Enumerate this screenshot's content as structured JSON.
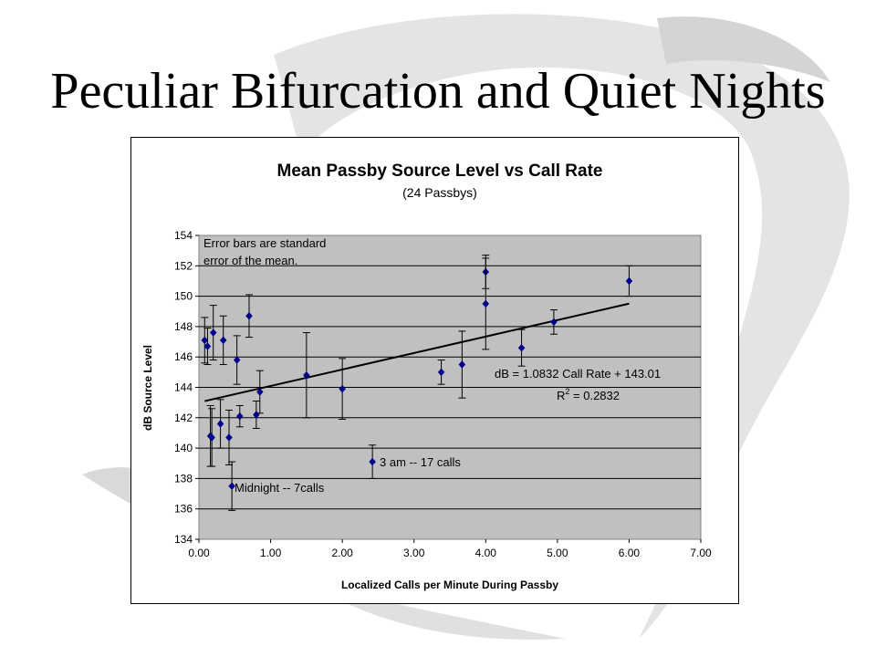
{
  "slide": {
    "title": "Peculiar Bifurcation and Quiet Nights"
  },
  "chart_data": {
    "type": "scatter",
    "title": "Mean Passby Source Level vs Call Rate",
    "subtitle": "(24 Passbys)",
    "xlabel": "Localized Calls per Minute During Passby",
    "ylabel": "dB Source Level",
    "xlim": [
      0,
      7
    ],
    "ylim": [
      134,
      154
    ],
    "x_ticks": [
      "0.00",
      "1.00",
      "2.00",
      "3.00",
      "4.00",
      "5.00",
      "6.00",
      "7.00"
    ],
    "y_ticks": [
      "134",
      "136",
      "138",
      "140",
      "142",
      "144",
      "146",
      "148",
      "150",
      "152",
      "154"
    ],
    "grid": "horizontal",
    "plot_background": "#c0c0c0",
    "marker_color": "#00008b",
    "points": [
      {
        "x": 0.08,
        "y": 147.1,
        "err": 1.5
      },
      {
        "x": 0.12,
        "y": 146.7,
        "err": 1.2
      },
      {
        "x": 0.16,
        "y": 140.8,
        "err": 2.0
      },
      {
        "x": 0.18,
        "y": 140.7,
        "err": 1.9
      },
      {
        "x": 0.2,
        "y": 147.6,
        "err": 1.8
      },
      {
        "x": 0.3,
        "y": 141.6,
        "err": 1.6
      },
      {
        "x": 0.34,
        "y": 147.1,
        "err": 1.6
      },
      {
        "x": 0.42,
        "y": 140.7,
        "err": 1.8
      },
      {
        "x": 0.46,
        "y": 137.5,
        "err": 1.6
      },
      {
        "x": 0.53,
        "y": 145.8,
        "err": 1.6
      },
      {
        "x": 0.57,
        "y": 142.1,
        "err": 0.7
      },
      {
        "x": 0.7,
        "y": 148.7,
        "err": 1.4
      },
      {
        "x": 0.8,
        "y": 142.2,
        "err": 0.9
      },
      {
        "x": 0.85,
        "y": 143.7,
        "err": 1.4
      },
      {
        "x": 1.5,
        "y": 144.8,
        "err": 2.8
      },
      {
        "x": 2.0,
        "y": 143.9,
        "err": 2.0
      },
      {
        "x": 2.42,
        "y": 139.1,
        "err": 1.1
      },
      {
        "x": 3.38,
        "y": 145.0,
        "err": 0.8
      },
      {
        "x": 3.67,
        "y": 145.5,
        "err": 2.2
      },
      {
        "x": 4.0,
        "y": 151.6,
        "err": 1.1
      },
      {
        "x": 4.0,
        "y": 149.5,
        "err": 3.0
      },
      {
        "x": 4.5,
        "y": 146.6,
        "err": 1.2
      },
      {
        "x": 4.95,
        "y": 148.3,
        "err": 0.8
      },
      {
        "x": 6.0,
        "y": 151.0,
        "err": 1.0
      }
    ],
    "trendline": {
      "slope": 1.0832,
      "intercept": 143.01,
      "x_range": [
        0.08,
        6.0
      ]
    },
    "equation_text": "dB = 1.0832 Call Rate + 143.01",
    "r2_label": "R",
    "r2_exp": "2",
    "r2_value": " = 0.2832",
    "annotations": {
      "error_note_line1": "Error bars are standard",
      "error_note_line2": "error of the mean.",
      "three_am": "3 am -- 17 calls",
      "midnight": "Midnight -- 7calls"
    }
  }
}
